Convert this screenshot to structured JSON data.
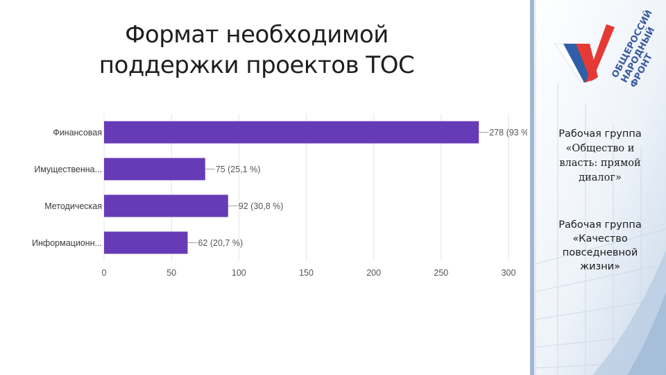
{
  "slide": {
    "title_line1": "Формат необходимой",
    "title_line2": "поддержки проектов ТОС"
  },
  "side_panel": {
    "group1_line1": "Рабочая группа",
    "group1_line2": "«Общество и",
    "group1_line3": "власть: прямой",
    "group1_line4": "диалог»",
    "group2_line1": "Рабочая группа",
    "group2_line2": "«Качество",
    "group2_line3": "повседневной",
    "group2_line4": "жизни»",
    "logo_line1": "ОБЩЕРОССИЙСКИЙ",
    "logo_line2": "НАРОДНЫЙ",
    "logo_line3": "ФРОНТ",
    "colors": {
      "flag_white": "#ffffff",
      "flag_blue": "#2f5fa8",
      "flag_red": "#e53935",
      "logo_text": "#3a5ba0"
    },
    "icon": "onf-logo-icon"
  },
  "chart_data": {
    "type": "bar",
    "orientation": "horizontal",
    "categories": [
      "Финансовая",
      "Имущественна...",
      "Методическая",
      "Информационн..."
    ],
    "values": [
      278,
      75,
      92,
      62
    ],
    "data_labels": [
      "278 (93 %",
      "75 (25,1 %)",
      "92 (30,8 %)",
      "62 (20,7 %)"
    ],
    "xlim": [
      0,
      300
    ],
    "xticks": [
      0,
      50,
      100,
      150,
      200,
      250,
      300
    ],
    "grid": true,
    "bar_color": "#673ab7",
    "title": "",
    "xlabel": "",
    "ylabel": ""
  }
}
